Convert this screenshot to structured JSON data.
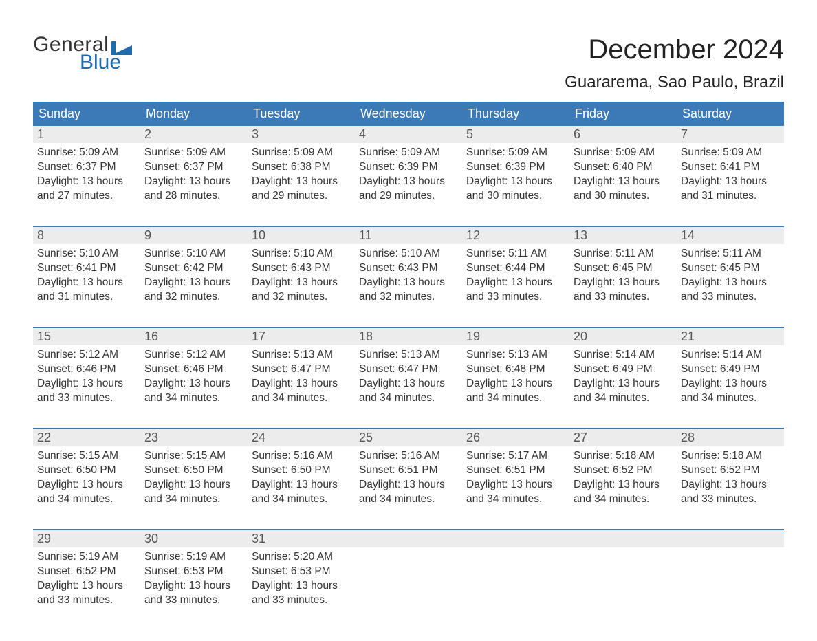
{
  "brand": {
    "name_top": "General",
    "name_bottom": "Blue",
    "flag_color": "#1f6bb0"
  },
  "title": "December 2024",
  "location": "Guararema, Sao Paulo, Brazil",
  "colors": {
    "header_bg": "#3b79b7",
    "rule": "#3b79b7",
    "band": "#ececec",
    "text": "#333333",
    "bg": "#ffffff"
  },
  "fonts": {
    "title_pt": 40,
    "location_pt": 24,
    "dow_pt": 18,
    "daynum_pt": 18,
    "cell_pt": 15.5
  },
  "days_of_week": [
    "Sunday",
    "Monday",
    "Tuesday",
    "Wednesday",
    "Thursday",
    "Friday",
    "Saturday"
  ],
  "labels": {
    "sunrise": "Sunrise: ",
    "sunset": "Sunset: ",
    "daylight": "Daylight: "
  },
  "weeks": [
    [
      {
        "n": 1,
        "sunrise": "5:09 AM",
        "sunset": "6:37 PM",
        "daylight": "13 hours and 27 minutes."
      },
      {
        "n": 2,
        "sunrise": "5:09 AM",
        "sunset": "6:37 PM",
        "daylight": "13 hours and 28 minutes."
      },
      {
        "n": 3,
        "sunrise": "5:09 AM",
        "sunset": "6:38 PM",
        "daylight": "13 hours and 29 minutes."
      },
      {
        "n": 4,
        "sunrise": "5:09 AM",
        "sunset": "6:39 PM",
        "daylight": "13 hours and 29 minutes."
      },
      {
        "n": 5,
        "sunrise": "5:09 AM",
        "sunset": "6:39 PM",
        "daylight": "13 hours and 30 minutes."
      },
      {
        "n": 6,
        "sunrise": "5:09 AM",
        "sunset": "6:40 PM",
        "daylight": "13 hours and 30 minutes."
      },
      {
        "n": 7,
        "sunrise": "5:09 AM",
        "sunset": "6:41 PM",
        "daylight": "13 hours and 31 minutes."
      }
    ],
    [
      {
        "n": 8,
        "sunrise": "5:10 AM",
        "sunset": "6:41 PM",
        "daylight": "13 hours and 31 minutes."
      },
      {
        "n": 9,
        "sunrise": "5:10 AM",
        "sunset": "6:42 PM",
        "daylight": "13 hours and 32 minutes."
      },
      {
        "n": 10,
        "sunrise": "5:10 AM",
        "sunset": "6:43 PM",
        "daylight": "13 hours and 32 minutes."
      },
      {
        "n": 11,
        "sunrise": "5:10 AM",
        "sunset": "6:43 PM",
        "daylight": "13 hours and 32 minutes."
      },
      {
        "n": 12,
        "sunrise": "5:11 AM",
        "sunset": "6:44 PM",
        "daylight": "13 hours and 33 minutes."
      },
      {
        "n": 13,
        "sunrise": "5:11 AM",
        "sunset": "6:45 PM",
        "daylight": "13 hours and 33 minutes."
      },
      {
        "n": 14,
        "sunrise": "5:11 AM",
        "sunset": "6:45 PM",
        "daylight": "13 hours and 33 minutes."
      }
    ],
    [
      {
        "n": 15,
        "sunrise": "5:12 AM",
        "sunset": "6:46 PM",
        "daylight": "13 hours and 33 minutes."
      },
      {
        "n": 16,
        "sunrise": "5:12 AM",
        "sunset": "6:46 PM",
        "daylight": "13 hours and 34 minutes."
      },
      {
        "n": 17,
        "sunrise": "5:13 AM",
        "sunset": "6:47 PM",
        "daylight": "13 hours and 34 minutes."
      },
      {
        "n": 18,
        "sunrise": "5:13 AM",
        "sunset": "6:47 PM",
        "daylight": "13 hours and 34 minutes."
      },
      {
        "n": 19,
        "sunrise": "5:13 AM",
        "sunset": "6:48 PM",
        "daylight": "13 hours and 34 minutes."
      },
      {
        "n": 20,
        "sunrise": "5:14 AM",
        "sunset": "6:49 PM",
        "daylight": "13 hours and 34 minutes."
      },
      {
        "n": 21,
        "sunrise": "5:14 AM",
        "sunset": "6:49 PM",
        "daylight": "13 hours and 34 minutes."
      }
    ],
    [
      {
        "n": 22,
        "sunrise": "5:15 AM",
        "sunset": "6:50 PM",
        "daylight": "13 hours and 34 minutes."
      },
      {
        "n": 23,
        "sunrise": "5:15 AM",
        "sunset": "6:50 PM",
        "daylight": "13 hours and 34 minutes."
      },
      {
        "n": 24,
        "sunrise": "5:16 AM",
        "sunset": "6:50 PM",
        "daylight": "13 hours and 34 minutes."
      },
      {
        "n": 25,
        "sunrise": "5:16 AM",
        "sunset": "6:51 PM",
        "daylight": "13 hours and 34 minutes."
      },
      {
        "n": 26,
        "sunrise": "5:17 AM",
        "sunset": "6:51 PM",
        "daylight": "13 hours and 34 minutes."
      },
      {
        "n": 27,
        "sunrise": "5:18 AM",
        "sunset": "6:52 PM",
        "daylight": "13 hours and 34 minutes."
      },
      {
        "n": 28,
        "sunrise": "5:18 AM",
        "sunset": "6:52 PM",
        "daylight": "13 hours and 33 minutes."
      }
    ],
    [
      {
        "n": 29,
        "sunrise": "5:19 AM",
        "sunset": "6:52 PM",
        "daylight": "13 hours and 33 minutes."
      },
      {
        "n": 30,
        "sunrise": "5:19 AM",
        "sunset": "6:53 PM",
        "daylight": "13 hours and 33 minutes."
      },
      {
        "n": 31,
        "sunrise": "5:20 AM",
        "sunset": "6:53 PM",
        "daylight": "13 hours and 33 minutes."
      },
      null,
      null,
      null,
      null
    ]
  ]
}
